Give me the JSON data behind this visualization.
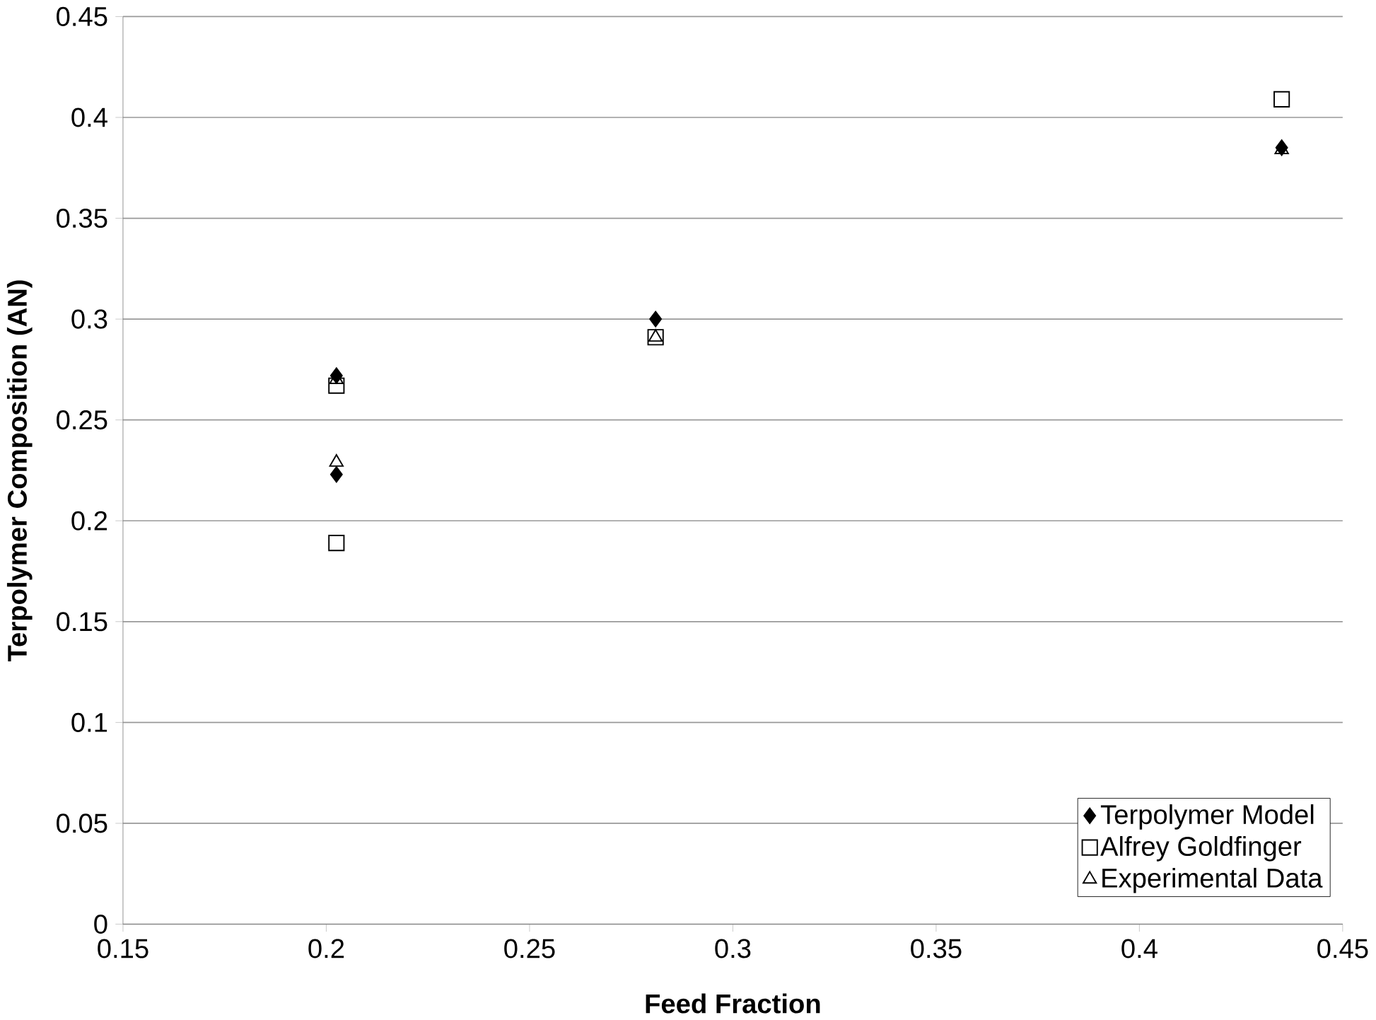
{
  "chart_data": {
    "type": "scatter",
    "xlabel": "Feed Fraction",
    "ylabel": "Terpolymer Composition (AN)",
    "x": [
      0.2025,
      0.2025,
      0.281,
      0.435
    ],
    "series": [
      {
        "name": "Terpolymer Model",
        "color": "#000000",
        "marker": "diamond",
        "values": [
          0.272,
          0.223,
          0.3,
          0.385
        ]
      },
      {
        "name": "Alfrey Goldfinger",
        "color": "#000000",
        "marker": "square",
        "values": [
          0.267,
          0.189,
          0.291,
          0.409
        ]
      },
      {
        "name": "Experimental Data",
        "color": "#000000",
        "marker": "triangle",
        "values": [
          0.27,
          0.229,
          0.291,
          0.384
        ]
      }
    ],
    "xlim": [
      0.15,
      0.45
    ],
    "xticks": [
      0.15,
      0.2,
      0.25,
      0.3,
      0.35,
      0.4,
      0.45
    ],
    "ylim": [
      0,
      0.45
    ],
    "yticks": [
      0,
      0.05,
      0.1,
      0.15,
      0.2,
      0.25,
      0.3,
      0.35,
      0.4,
      0.45
    ],
    "grid": "y",
    "legend": "bottom right"
  }
}
